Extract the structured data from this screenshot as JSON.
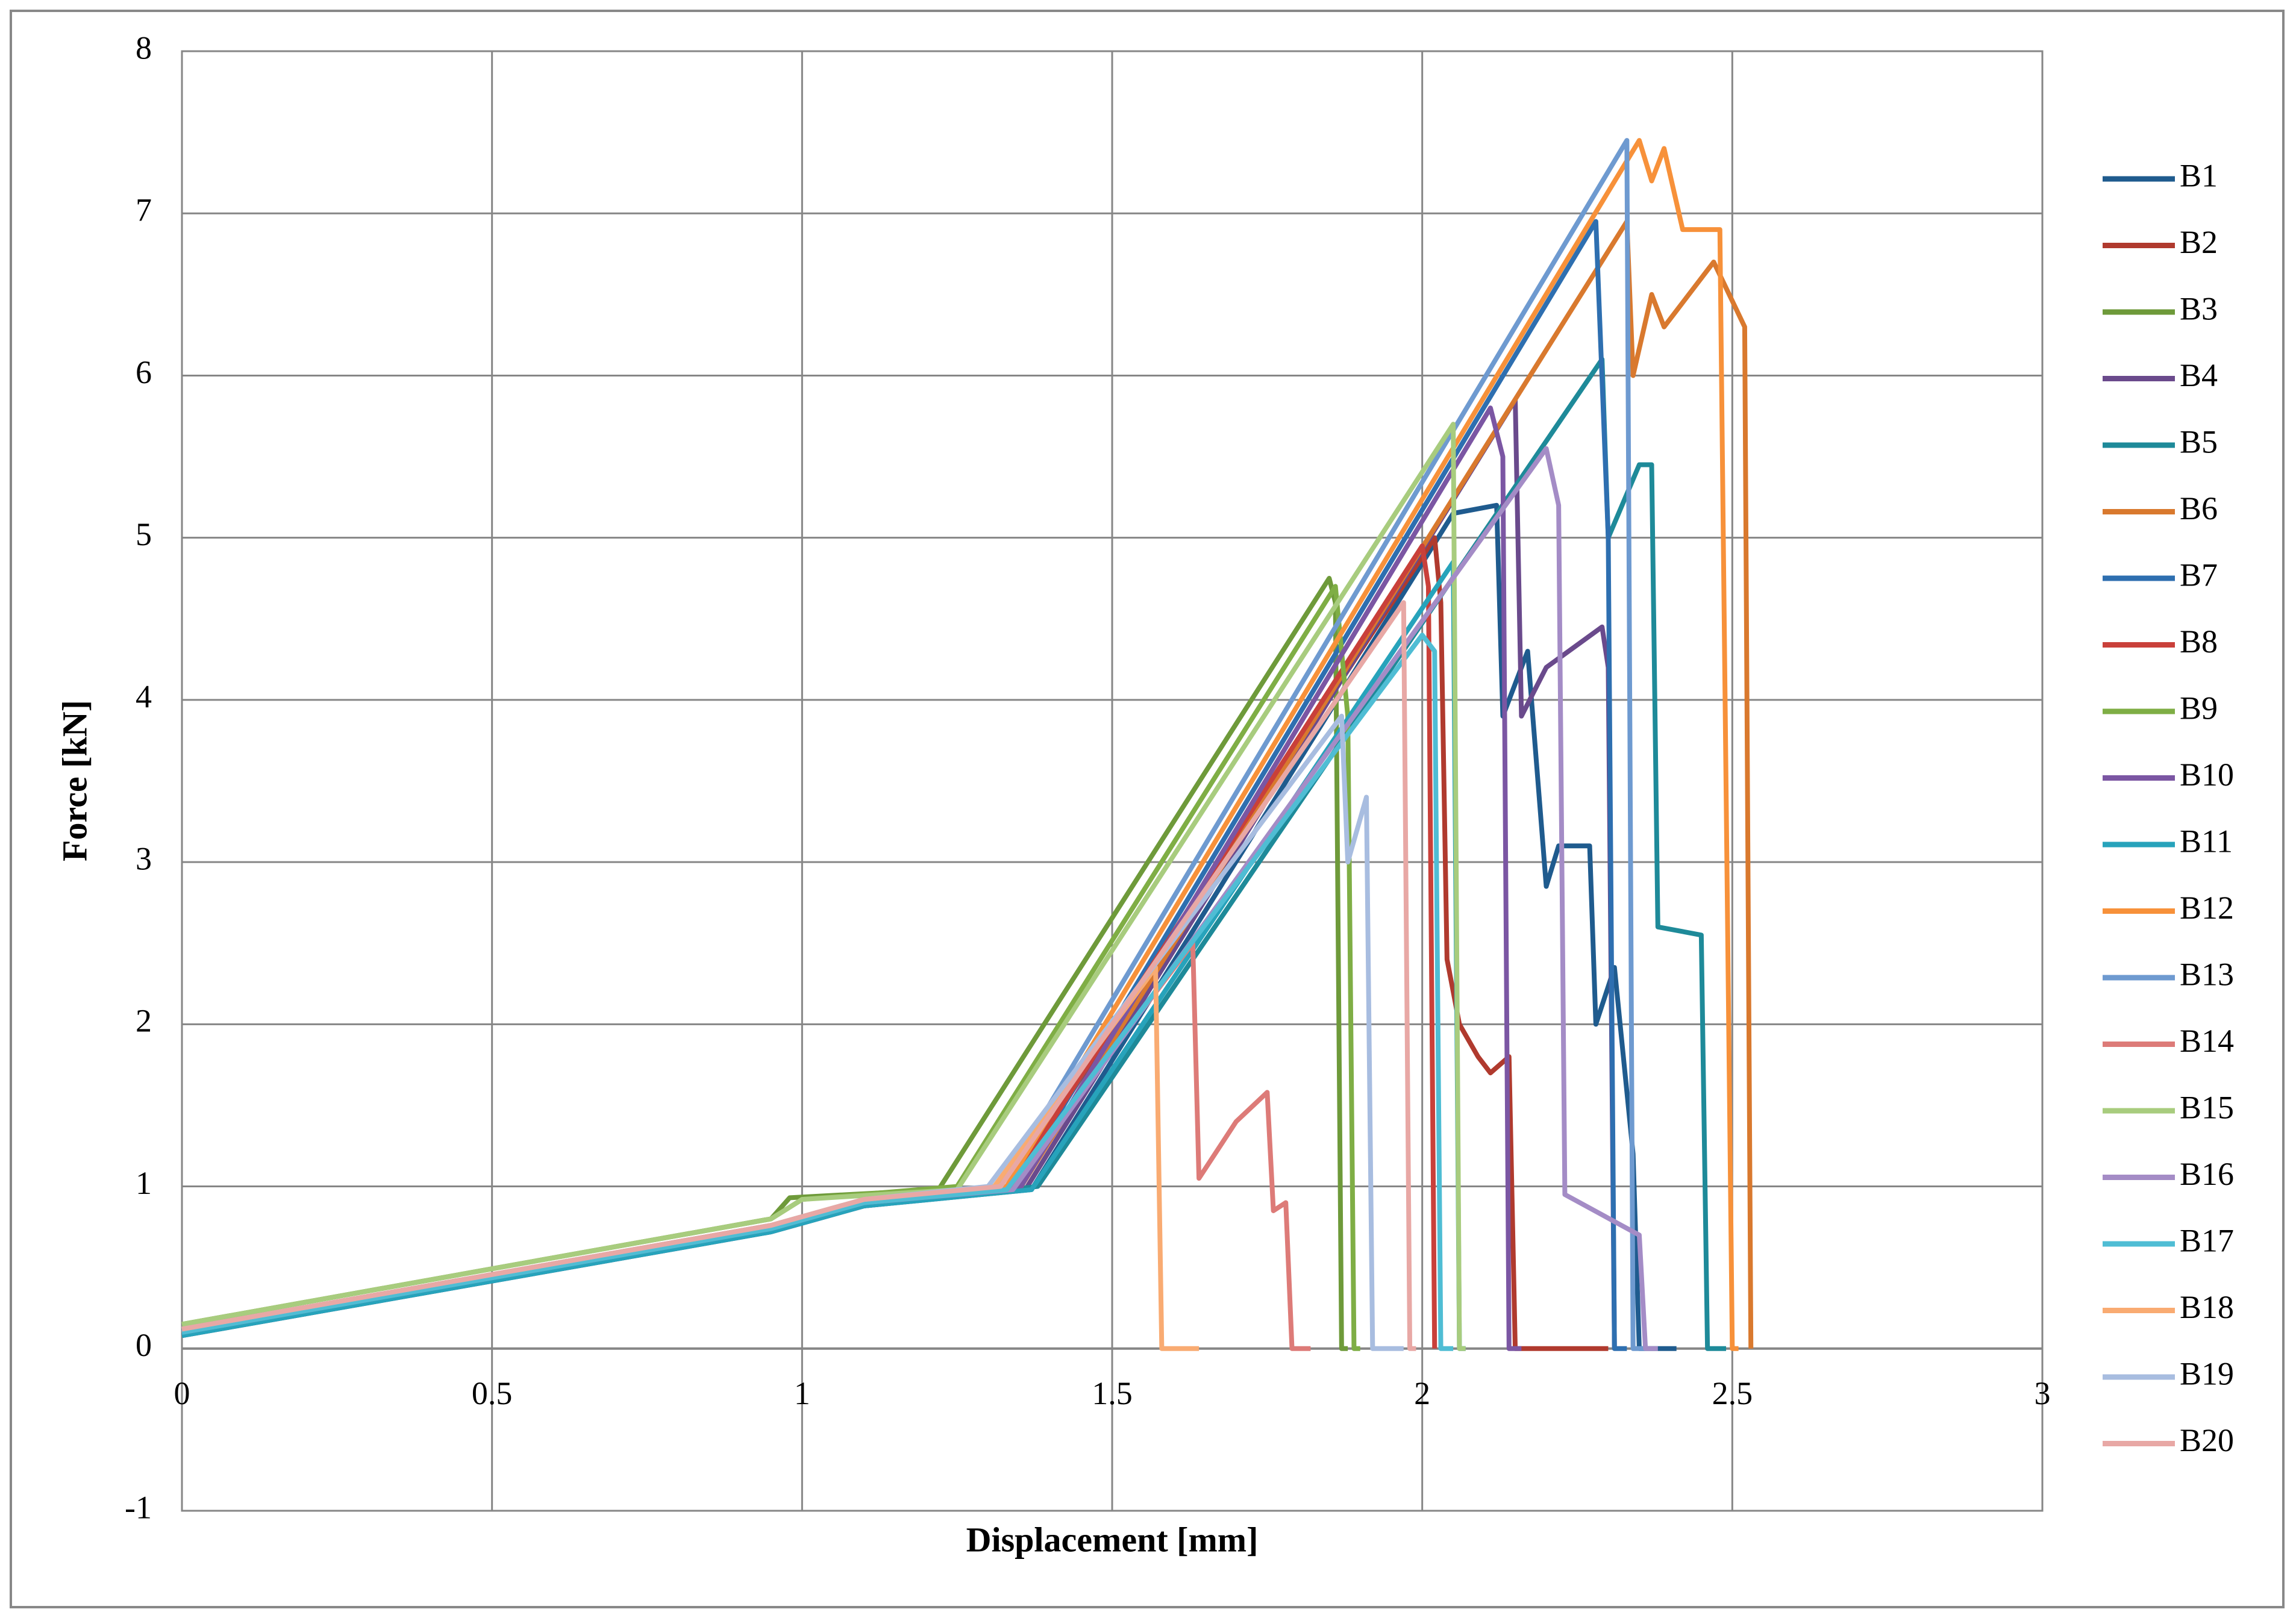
{
  "chart_data": {
    "type": "line",
    "x_label": "Displacement [mm]",
    "y_label": "Force [kN]",
    "xlim": [
      0,
      3
    ],
    "xticks": [
      0,
      0.5,
      1,
      1.5,
      2,
      2.5,
      3
    ],
    "ylim": [
      -1,
      8
    ],
    "yticks": [
      -1,
      0,
      1,
      2,
      3,
      4,
      5,
      6,
      7,
      8
    ],
    "grid": true,
    "legend": "right",
    "series": [
      {
        "name": "B1",
        "color": "#1f5b8e",
        "x": [
          0,
          0.95,
          1.1,
          1.37,
          2.05,
          2.12,
          2.13,
          2.17,
          2.2,
          2.22,
          2.27,
          2.28,
          2.31,
          2.34,
          2.35,
          2.41
        ],
        "values": [
          0.08,
          0.72,
          0.88,
          0.98,
          5.15,
          5.2,
          3.9,
          4.3,
          2.85,
          3.1,
          3.1,
          2.0,
          2.35,
          1.2,
          0,
          0
        ]
      },
      {
        "name": "B2",
        "color": "#b03a2e",
        "x": [
          0,
          0.95,
          1.1,
          1.33,
          2.02,
          2.03,
          2.04,
          2.06,
          2.09,
          2.11,
          2.14,
          2.15,
          2.3
        ],
        "values": [
          0.1,
          0.74,
          0.9,
          0.97,
          5.0,
          4.6,
          2.4,
          2.0,
          1.8,
          1.7,
          1.8,
          0,
          0
        ]
      },
      {
        "name": "B3",
        "color": "#6e9a3a",
        "x": [
          0,
          0.95,
          0.98,
          1.22,
          1.85,
          1.86,
          1.87,
          1.88
        ],
        "values": [
          0.15,
          0.8,
          0.93,
          0.98,
          4.75,
          4.6,
          0,
          0
        ]
      },
      {
        "name": "B4",
        "color": "#6a4a8c",
        "x": [
          0,
          0.95,
          1.1,
          1.36,
          2.15,
          2.16,
          2.2,
          2.29,
          2.3,
          2.31
        ],
        "values": [
          0.08,
          0.72,
          0.88,
          0.98,
          5.85,
          3.9,
          4.2,
          4.45,
          4.2,
          0
        ]
      },
      {
        "name": "B5",
        "color": "#1e8a99",
        "x": [
          0,
          0.95,
          1.1,
          1.38,
          2.29,
          2.3,
          2.35,
          2.37,
          2.38,
          2.45,
          2.46,
          2.49
        ],
        "values": [
          0.08,
          0.72,
          0.88,
          1.0,
          6.1,
          5.0,
          5.45,
          5.45,
          2.6,
          2.55,
          0,
          0
        ]
      },
      {
        "name": "B6",
        "color": "#d9792e",
        "x": [
          0,
          0.95,
          1.1,
          1.35,
          2.33,
          2.34,
          2.37,
          2.39,
          2.47,
          2.52,
          2.53
        ],
        "values": [
          0.1,
          0.74,
          0.9,
          0.98,
          6.95,
          6.0,
          6.5,
          6.3,
          6.7,
          6.3,
          0
        ]
      },
      {
        "name": "B7",
        "color": "#2e6fb0",
        "x": [
          0,
          0.95,
          1.1,
          1.34,
          2.28,
          2.3,
          2.31,
          2.33
        ],
        "values": [
          0.1,
          0.74,
          0.9,
          0.98,
          6.95,
          5.0,
          0,
          0
        ]
      },
      {
        "name": "B8",
        "color": "#c9403a",
        "x": [
          0,
          0.95,
          1.1,
          1.33,
          2.0,
          2.01,
          2.02
        ],
        "values": [
          0.1,
          0.74,
          0.9,
          0.97,
          4.95,
          4.7,
          0
        ]
      },
      {
        "name": "B9",
        "color": "#7fae45",
        "x": [
          0,
          0.95,
          1.0,
          1.25,
          1.86,
          1.88,
          1.89,
          1.9
        ],
        "values": [
          0.15,
          0.8,
          0.92,
          1.0,
          4.7,
          3.9,
          0,
          0
        ]
      },
      {
        "name": "B10",
        "color": "#7b56a3",
        "x": [
          0,
          0.95,
          1.1,
          1.35,
          2.11,
          2.13,
          2.14,
          2.16
        ],
        "values": [
          0.1,
          0.74,
          0.9,
          0.98,
          5.8,
          5.5,
          0,
          0
        ]
      },
      {
        "name": "B11",
        "color": "#27a3bb",
        "x": [
          0,
          0.95,
          1.1,
          1.37,
          2.05,
          2.06,
          2.07
        ],
        "values": [
          0.08,
          0.72,
          0.88,
          0.98,
          4.85,
          0,
          0
        ]
      },
      {
        "name": "B12",
        "color": "#f7913a",
        "x": [
          0,
          0.95,
          1.1,
          1.33,
          2.35,
          2.37,
          2.39,
          2.42,
          2.48,
          2.5,
          2.51
        ],
        "values": [
          0.12,
          0.76,
          0.92,
          1.0,
          7.45,
          7.2,
          7.4,
          6.9,
          6.9,
          0,
          0
        ]
      },
      {
        "name": "B13",
        "color": "#6e9ad0",
        "x": [
          0,
          0.95,
          1.1,
          1.32,
          2.33,
          2.34,
          2.36
        ],
        "values": [
          0.12,
          0.76,
          0.92,
          1.0,
          7.45,
          0,
          0
        ]
      },
      {
        "name": "B14",
        "color": "#dd7b78",
        "x": [
          0,
          0.95,
          1.1,
          1.33,
          1.63,
          1.64,
          1.7,
          1.75,
          1.76,
          1.78,
          1.79,
          1.82
        ],
        "values": [
          0.1,
          0.74,
          0.9,
          0.98,
          2.5,
          1.05,
          1.4,
          1.58,
          0.85,
          0.9,
          0,
          0
        ]
      },
      {
        "name": "B15",
        "color": "#a8cc7e",
        "x": [
          0,
          0.95,
          1.0,
          1.25,
          2.05,
          2.06,
          2.07
        ],
        "values": [
          0.15,
          0.8,
          0.92,
          0.98,
          5.7,
          0,
          0
        ]
      },
      {
        "name": "B16",
        "color": "#a48cc6",
        "x": [
          0,
          0.95,
          1.1,
          1.34,
          2.2,
          2.22,
          2.23,
          2.35,
          2.36,
          2.38
        ],
        "values": [
          0.1,
          0.74,
          0.9,
          0.98,
          5.55,
          5.2,
          0.95,
          0.7,
          0,
          0
        ]
      },
      {
        "name": "B17",
        "color": "#4fbdd4",
        "x": [
          0,
          0.95,
          1.1,
          1.33,
          2.0,
          2.02,
          2.03,
          2.05
        ],
        "values": [
          0.1,
          0.74,
          0.9,
          0.98,
          4.4,
          4.3,
          0,
          0
        ]
      },
      {
        "name": "B18",
        "color": "#f9ab72",
        "x": [
          0,
          0.95,
          1.1,
          1.31,
          1.57,
          1.58,
          1.64
        ],
        "values": [
          0.12,
          0.76,
          0.92,
          1.0,
          2.35,
          0,
          0
        ]
      },
      {
        "name": "B19",
        "color": "#a8bde0",
        "x": [
          0,
          0.95,
          1.1,
          1.3,
          1.87,
          1.88,
          1.91,
          1.92,
          1.97
        ],
        "values": [
          0.12,
          0.76,
          0.92,
          1.0,
          3.9,
          3.0,
          3.4,
          0,
          0
        ]
      },
      {
        "name": "B20",
        "color": "#e8a8a5",
        "x": [
          0,
          0.95,
          1.1,
          1.32,
          1.97,
          1.98,
          1.99
        ],
        "values": [
          0.12,
          0.76,
          0.92,
          1.0,
          4.6,
          0,
          0
        ]
      }
    ]
  }
}
